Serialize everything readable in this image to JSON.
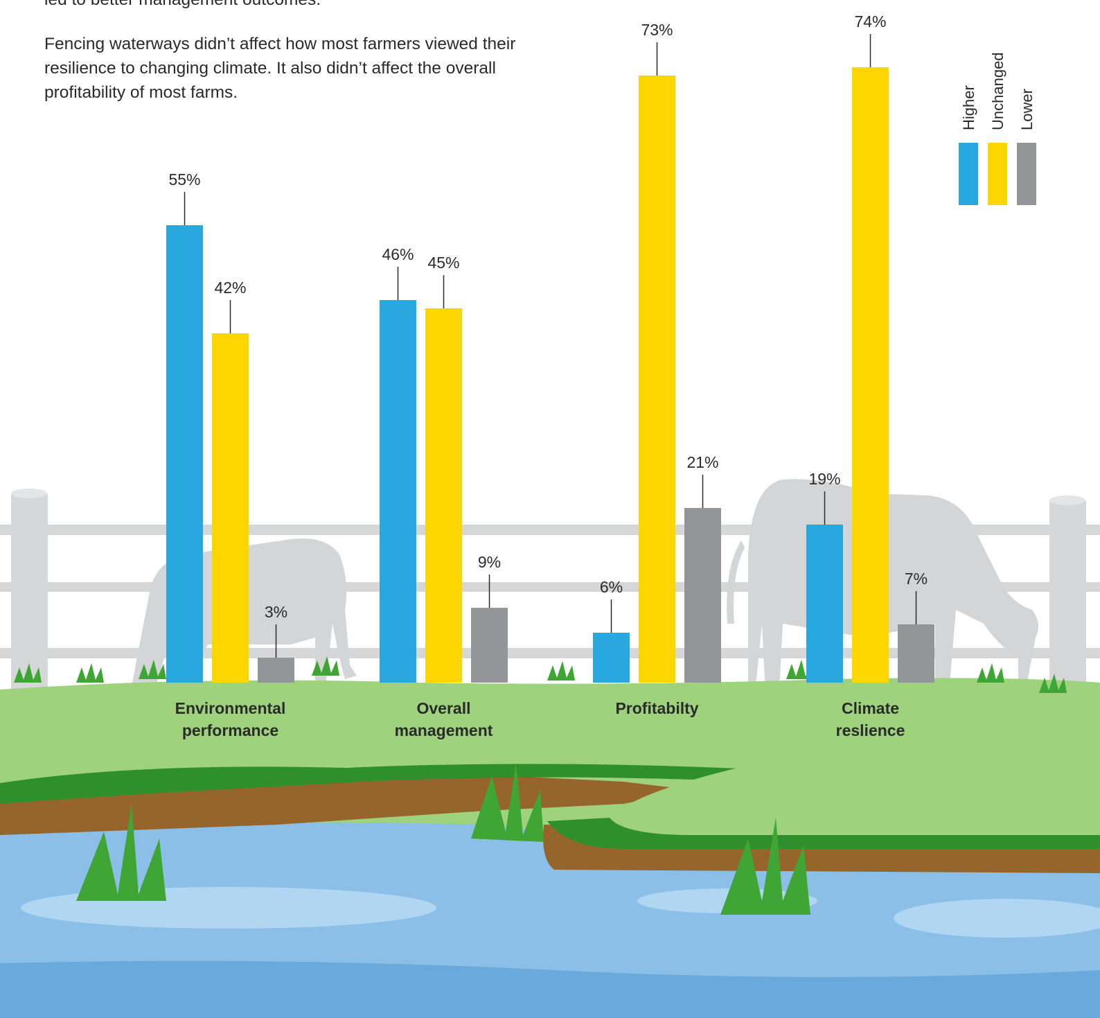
{
  "intro": {
    "top_line": "led to better management outcomes.",
    "paragraph": "Fencing waterways didn’t affect how most farmers viewed their resilience to changing climate. It also didn’t affect the overall profitability of most farms."
  },
  "colors": {
    "higher": "#29a8e0",
    "unchanged": "#fdd600",
    "lower": "#939598",
    "grass": "#9ed27c",
    "dark_grass": "#2f8f2b",
    "water": "#8bbfe8",
    "fence": "#d6d7d9"
  },
  "chart_data": {
    "type": "bar",
    "title": "",
    "xlabel": "",
    "ylabel": "",
    "ylim": [
      0,
      80
    ],
    "grid": false,
    "legend_position": "top-right",
    "categories": [
      [
        "Environmental",
        "performance"
      ],
      [
        "Overall",
        "management"
      ],
      [
        "Profitabilty"
      ],
      [
        "Climate",
        "reslience"
      ]
    ],
    "series": [
      {
        "name": "Higher",
        "color": "#29a8e0",
        "values": [
          55,
          46,
          6,
          19
        ],
        "labels": [
          "55%",
          "46%",
          "6%",
          "19%"
        ]
      },
      {
        "name": "Unchanged",
        "color": "#fdd600",
        "values": [
          42,
          45,
          73,
          74
        ],
        "labels": [
          "42%",
          "45%",
          "73%",
          "74%"
        ]
      },
      {
        "name": "Lower",
        "color": "#939598",
        "values": [
          3,
          9,
          21,
          7
        ],
        "labels": [
          "3%",
          "9%",
          "21%",
          "7%"
        ]
      }
    ]
  }
}
